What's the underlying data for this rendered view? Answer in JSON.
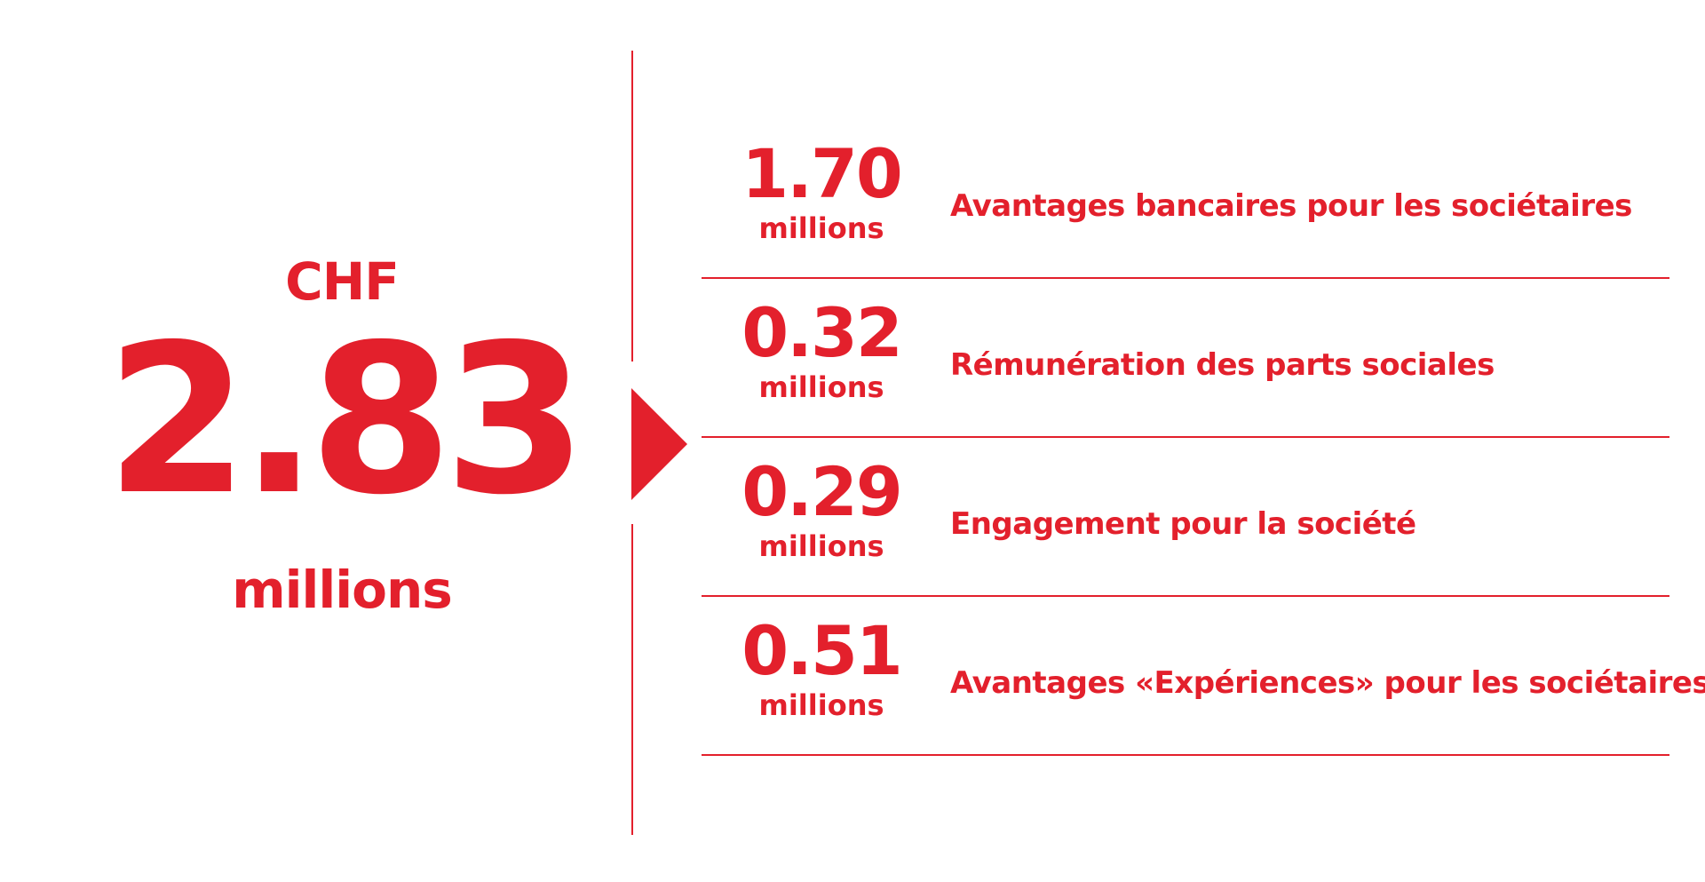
{
  "total": {
    "currency": "CHF",
    "amount": "2.83",
    "unit": "millions"
  },
  "breakdown": [
    {
      "value": "1.70",
      "unit": "millions",
      "label": "Avantages bancaires pour les sociétaires"
    },
    {
      "value": "0.32",
      "unit": "millions",
      "label": "Rémunération des parts sociales"
    },
    {
      "value": "0.29",
      "unit": "millions",
      "label": "Engagement pour la société"
    },
    {
      "value": "0.51",
      "unit": "millions",
      "label": "Avantages «Expériences» pour les sociétaires"
    }
  ],
  "colors": {
    "accent": "#e3202c",
    "background": "#ffffff"
  },
  "icons": {
    "pointer": "triangle-right-icon"
  }
}
